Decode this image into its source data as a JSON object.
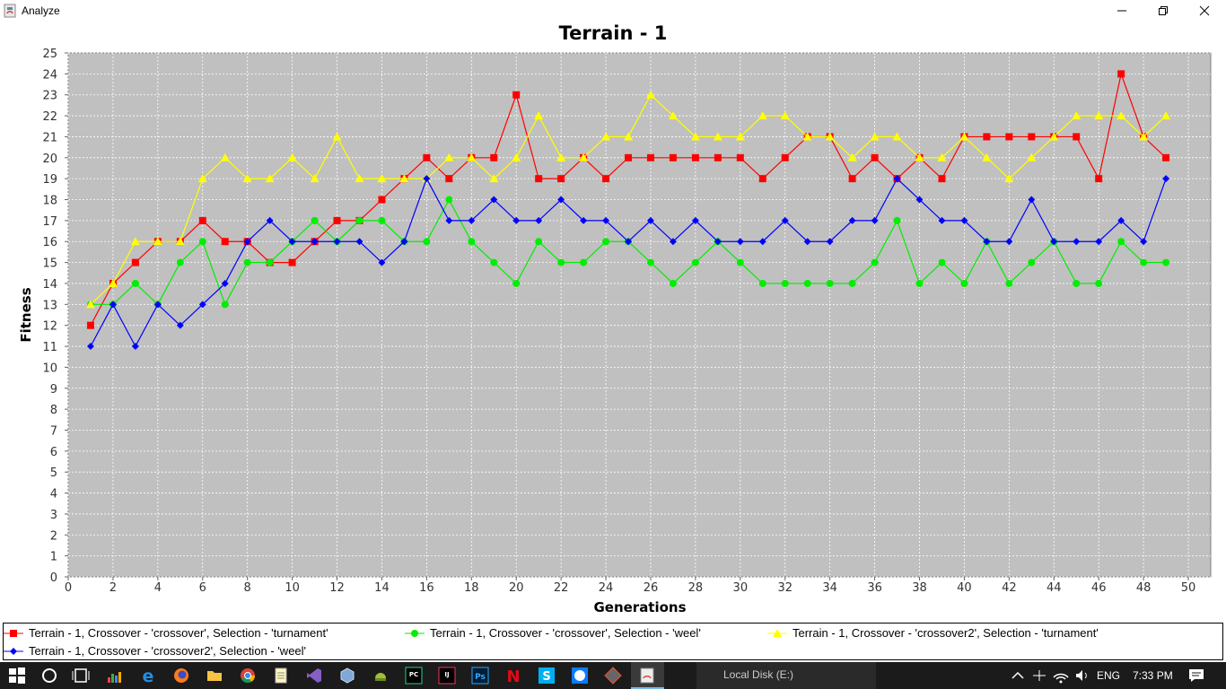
{
  "window": {
    "title": "Analyze",
    "minimize_icon": "minimize-icon",
    "maximize_icon": "restore-icon",
    "close_icon": "close-icon"
  },
  "chart_data": {
    "type": "line",
    "title": "Terrain - 1",
    "xlabel": "Generations",
    "ylabel": "Fitness",
    "xlim": [
      0,
      51
    ],
    "ylim": [
      0,
      25
    ],
    "xticks": [
      0,
      2,
      4,
      6,
      8,
      10,
      12,
      14,
      16,
      18,
      20,
      22,
      24,
      26,
      28,
      30,
      32,
      34,
      36,
      38,
      40,
      42,
      44,
      46,
      48,
      50
    ],
    "yticks": [
      0,
      1,
      2,
      3,
      4,
      5,
      6,
      7,
      8,
      9,
      10,
      11,
      12,
      13,
      14,
      15,
      16,
      17,
      18,
      19,
      20,
      21,
      22,
      23,
      24,
      25
    ],
    "grid": true,
    "legend_position": "bottom",
    "x": [
      1,
      2,
      3,
      4,
      5,
      6,
      7,
      8,
      9,
      10,
      11,
      12,
      13,
      14,
      15,
      16,
      17,
      18,
      19,
      20,
      21,
      22,
      23,
      24,
      25,
      26,
      27,
      28,
      29,
      30,
      31,
      32,
      33,
      34,
      35,
      36,
      37,
      38,
      39,
      40,
      41,
      42,
      43,
      44,
      45,
      46,
      47,
      48,
      49
    ],
    "series": [
      {
        "name": "Terrain - 1, Crossover - 'crossover', Selection - 'turnament'",
        "color": "#ff0000",
        "marker": "square",
        "values": [
          12,
          14,
          15,
          16,
          16,
          17,
          16,
          16,
          15,
          15,
          16,
          17,
          17,
          18,
          19,
          20,
          19,
          20,
          20,
          23,
          19,
          19,
          20,
          19,
          20,
          20,
          20,
          20,
          20,
          20,
          19,
          20,
          21,
          21,
          19,
          20,
          19,
          20,
          19,
          21,
          21,
          21,
          21,
          21,
          21,
          19,
          24,
          21,
          20
        ]
      },
      {
        "name": "Terrain - 1, Crossover - 'crossover', Selection - 'weel'",
        "color": "#00ee00",
        "marker": "circle",
        "values": [
          13,
          13,
          14,
          13,
          15,
          16,
          13,
          15,
          15,
          16,
          17,
          16,
          17,
          17,
          16,
          16,
          18,
          16,
          15,
          14,
          16,
          15,
          15,
          16,
          16,
          15,
          14,
          15,
          16,
          15,
          14,
          14,
          14,
          14,
          14,
          15,
          17,
          14,
          15,
          14,
          16,
          14,
          15,
          16,
          14,
          14,
          16,
          15,
          15
        ]
      },
      {
        "name": "Terrain - 1, Crossover - 'crossover2', Selection - 'turnament'",
        "color": "#ffff00",
        "marker": "triangle",
        "values": [
          13,
          14,
          16,
          16,
          16,
          19,
          20,
          19,
          19,
          20,
          19,
          21,
          19,
          19,
          19,
          19,
          20,
          20,
          19,
          20,
          22,
          20,
          20,
          21,
          21,
          23,
          22,
          21,
          21,
          21,
          22,
          22,
          21,
          21,
          20,
          21,
          21,
          20,
          20,
          21,
          20,
          19,
          20,
          21,
          22,
          22,
          22,
          21,
          22
        ]
      },
      {
        "name": "Terrain - 1, Crossover - 'crossover2', Selection - 'weel'",
        "color": "#0000ff",
        "marker": "diamond",
        "values": [
          11,
          13,
          11,
          13,
          12,
          13,
          14,
          16,
          17,
          16,
          16,
          16,
          16,
          15,
          16,
          19,
          17,
          17,
          18,
          17,
          17,
          18,
          17,
          17,
          16,
          17,
          16,
          17,
          16,
          16,
          16,
          17,
          16,
          16,
          17,
          17,
          19,
          18,
          17,
          17,
          16,
          16,
          18,
          16,
          16,
          16,
          17,
          16,
          19
        ]
      }
    ]
  },
  "taskbar": {
    "icons": [
      "windows-start-icon",
      "search-circle-icon",
      "task-view-icon",
      "app-icon-1",
      "edge-icon",
      "firefox-icon",
      "file-explorer-icon",
      "chrome-icon",
      "notepad-icon",
      "visual-studio-icon",
      "virtualbox-icon",
      "android-studio-icon",
      "pycharm-icon",
      "intellij-icon",
      "photoshop-icon",
      "netflix-icon",
      "skype-icon",
      "messenger-icon",
      "git-icon",
      "java-icon"
    ],
    "active_window_label": "Local Disk (E:)",
    "language": "ENG",
    "time": "7:33 PM"
  }
}
